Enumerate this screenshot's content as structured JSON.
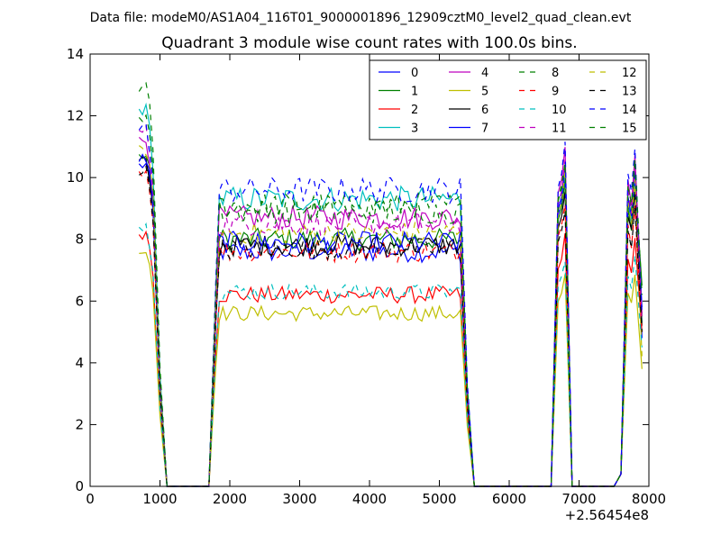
{
  "figure": {
    "suptitle": "Data file: modeM0/AS1A04_116T01_9000001896_12909cztM0_level2_quad_clean.evt"
  },
  "chart_data": {
    "type": "line",
    "title": "Quadrant 3 module wise count rates with 100.0s bins.",
    "xlabel": "",
    "ylabel": "",
    "x_offset_label": "+2.56454e8",
    "xlim": [
      0,
      8000
    ],
    "ylim": [
      0,
      14
    ],
    "xticks": [
      0,
      1000,
      2000,
      3000,
      4000,
      5000,
      6000,
      7000,
      8000
    ],
    "yticks": [
      0,
      2,
      4,
      6,
      8,
      10,
      12,
      14
    ],
    "grid": false,
    "legend": {
      "placement": "top-right",
      "columns": 4
    },
    "segments": [
      {
        "start": 700,
        "end": 900,
        "level": "hi",
        "drop": [
          1000,
          1100
        ]
      },
      {
        "gap": [
          1100,
          1700
        ]
      },
      {
        "start": 1800,
        "end": 5300,
        "level": "plateau"
      },
      {
        "gap": [
          5500,
          6600
        ]
      },
      {
        "peak": [
          6700,
          6800
        ]
      },
      {
        "gap": [
          6900,
          7400
        ]
      },
      {
        "peak": [
          7700,
          7900
        ]
      }
    ],
    "series": [
      {
        "name": "0",
        "color": "#0000ff",
        "dash": "solid",
        "base": 7.6,
        "hi": 10.4,
        "peak": 10.0,
        "end": 4.8
      },
      {
        "name": "1",
        "color": "#008000",
        "dash": "solid",
        "base": 8.0,
        "hi": 10.7,
        "peak": 9.8,
        "end": 6.5
      },
      {
        "name": "2",
        "color": "#ff0000",
        "dash": "solid",
        "base": 6.2,
        "hi": 8.2,
        "peak": 8.0,
        "end": 5.0
      },
      {
        "name": "3",
        "color": "#00bfbf",
        "dash": "solid",
        "base": 9.3,
        "hi": 12.2,
        "peak": 10.2,
        "end": 5.3
      },
      {
        "name": "4",
        "color": "#bf00bf",
        "dash": "solid",
        "base": 8.7,
        "hi": 11.2,
        "peak": 10.8,
        "end": 5.6
      },
      {
        "name": "5",
        "color": "#bfbf00",
        "dash": "solid",
        "base": 5.6,
        "hi": 7.6,
        "peak": 6.8,
        "end": 3.8
      },
      {
        "name": "6",
        "color": "#000000",
        "dash": "solid",
        "base": 7.8,
        "hi": 10.5,
        "peak": 9.5,
        "end": 5.2
      },
      {
        "name": "7",
        "color": "#0000ff",
        "dash": "solid",
        "base": 7.9,
        "hi": 10.6,
        "peak": 10.2,
        "end": 5.8
      },
      {
        "name": "8",
        "color": "#008000",
        "dash": "dashed",
        "base": 9.1,
        "hi": 12.9,
        "peak": 10.6,
        "end": 5.5
      },
      {
        "name": "9",
        "color": "#ff0000",
        "dash": "dashed",
        "base": 7.6,
        "hi": 10.2,
        "peak": 9.2,
        "end": 5.0
      },
      {
        "name": "10",
        "color": "#00bfbf",
        "dash": "dashed",
        "base": 6.3,
        "hi": 8.4,
        "peak": 7.4,
        "end": 4.5
      },
      {
        "name": "11",
        "color": "#bf00bf",
        "dash": "dashed",
        "base": 8.5,
        "hi": 11.5,
        "peak": 10.4,
        "end": 5.4
      },
      {
        "name": "12",
        "color": "#bfbf00",
        "dash": "dashed",
        "base": 8.2,
        "hi": 10.9,
        "peak": 10.0,
        "end": 4.2
      },
      {
        "name": "13",
        "color": "#000000",
        "dash": "dashed",
        "base": 7.7,
        "hi": 10.2,
        "peak": 9.0,
        "end": 5.0
      },
      {
        "name": "14",
        "color": "#0000ff",
        "dash": "dashed",
        "base": 9.6,
        "hi": 11.6,
        "peak": 11.0,
        "end": 5.6
      },
      {
        "name": "15",
        "color": "#008000",
        "dash": "dashed",
        "base": 8.9,
        "hi": 12.0,
        "peak": 10.5,
        "end": 6.2
      }
    ]
  }
}
